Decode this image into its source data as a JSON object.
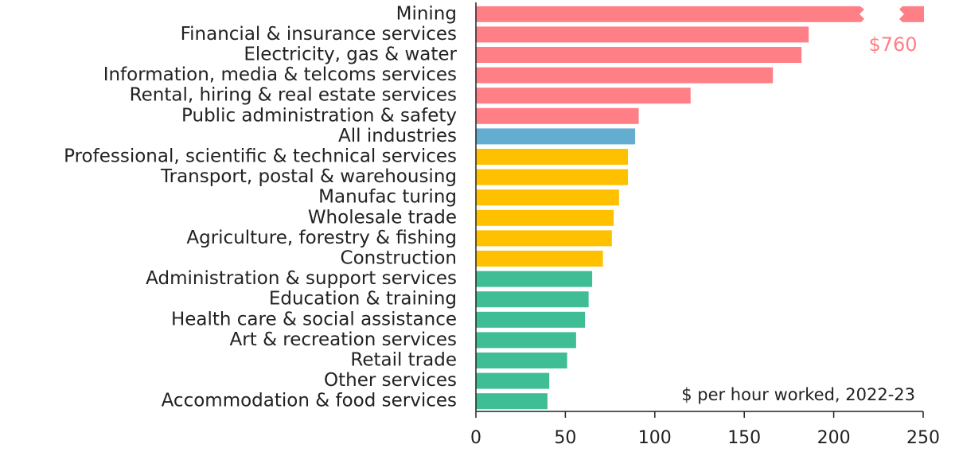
{
  "chart_data": {
    "type": "bar",
    "orientation": "horizontal",
    "categories": [
      "Mining",
      "Financial & insurance services",
      "Electricity, gas & water",
      "Information, media & telcoms services",
      "Rental, hiring & real estate services",
      "Public administration & safety",
      "All industries",
      "Professional, scientific & technical services",
      "Transport, postal & warehousing",
      "Manufac turing",
      "Wholesale trade",
      "Agriculture, forestry & fishing",
      "Construction",
      "Administration & support services",
      "Education & training",
      "Health care & social assistance",
      "Art & recreation services",
      "Retail trade",
      "Other services",
      "Accommodation & food services"
    ],
    "values": [
      760,
      186,
      182,
      166,
      120,
      91,
      89,
      85,
      85,
      80,
      77,
      76,
      71,
      65,
      63,
      61,
      56,
      51,
      41,
      40
    ],
    "value_labels": [
      "$760",
      null,
      null,
      null,
      null,
      null,
      null,
      null,
      null,
      null,
      null,
      null,
      null,
      null,
      null,
      null,
      null,
      null,
      null,
      null
    ],
    "colors": [
      "#ff7f86",
      "#ff7f86",
      "#ff7f86",
      "#ff7f86",
      "#ff7f86",
      "#ff7f86",
      "#63aed0",
      "#ffc000",
      "#ffc000",
      "#ffc000",
      "#ffc000",
      "#ffc000",
      "#ffc000",
      "#3fbd95",
      "#3fbd95",
      "#3fbd95",
      "#3fbd95",
      "#3fbd95",
      "#3fbd95",
      "#3fbd95"
    ],
    "annotation": "$ per hour worked, 2022-23",
    "xlim": [
      0,
      250
    ],
    "xticks": [
      0,
      50,
      100,
      150,
      200,
      250
    ]
  }
}
